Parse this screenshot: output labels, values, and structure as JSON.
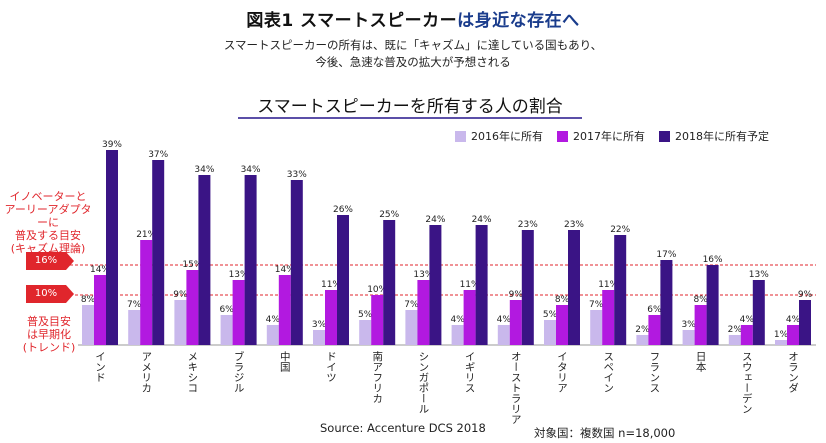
{
  "header": {
    "title_part1": "図表1 スマートスピーカー",
    "title_part2": "は身近な存在へ",
    "subtitle_line1": "スマートスピーカーの所有は、既に「キャズム」に達している国もあり、",
    "subtitle_line2": "今後、急速な普及の拡大が予想される"
  },
  "chart_title": "スマートスピーカーを所有する人の割合",
  "annotations": {
    "early_label": "イノベーターと\nアーリーアダプターに\n普及する目安\n(キャズム理論)",
    "tag_16": "16%",
    "tag_10": "10%",
    "late_label": "普及目安\nは早期化\n(トレンド)"
  },
  "footer": {
    "source": "Source: Accenture DCS 2018",
    "target": "対象国：複数国 n=18,000"
  },
  "colors": {
    "s2016": "#c9b8ec",
    "s2017": "#b219e0",
    "s2018": "#3a1485",
    "ref_line": "#e0262c"
  },
  "chart_data": {
    "type": "bar",
    "title": "スマートスピーカーを所有する人の割合",
    "categories": [
      "インド",
      "アメリカ",
      "メキシコ",
      "ブラジル",
      "中国",
      "ドイツ",
      "南アフリカ",
      "シンガポール",
      "イギリス",
      "オーストラリア",
      "イタリア",
      "スペイン",
      "フランス",
      "日本",
      "スウェーデン",
      "オランダ"
    ],
    "series": [
      {
        "name": "2016年に所有",
        "color": "#c9b8ec",
        "values": [
          8,
          7,
          9,
          6,
          4,
          3,
          5,
          7,
          4,
          4,
          5,
          7,
          2,
          3,
          2,
          1
        ]
      },
      {
        "name": "2017年に所有",
        "color": "#b219e0",
        "values": [
          14,
          21,
          15,
          13,
          14,
          11,
          10,
          13,
          11,
          9,
          8,
          11,
          6,
          8,
          4,
          4
        ]
      },
      {
        "name": "2018年に所有予定",
        "color": "#3a1485",
        "values": [
          39,
          37,
          34,
          34,
          33,
          26,
          25,
          24,
          24,
          23,
          23,
          22,
          17,
          16,
          13,
          9
        ]
      }
    ],
    "value_suffix": "%",
    "reference_lines": [
      16,
      10
    ],
    "ylim": [
      0,
      40
    ],
    "legend_position": "top-right",
    "grid": false
  }
}
